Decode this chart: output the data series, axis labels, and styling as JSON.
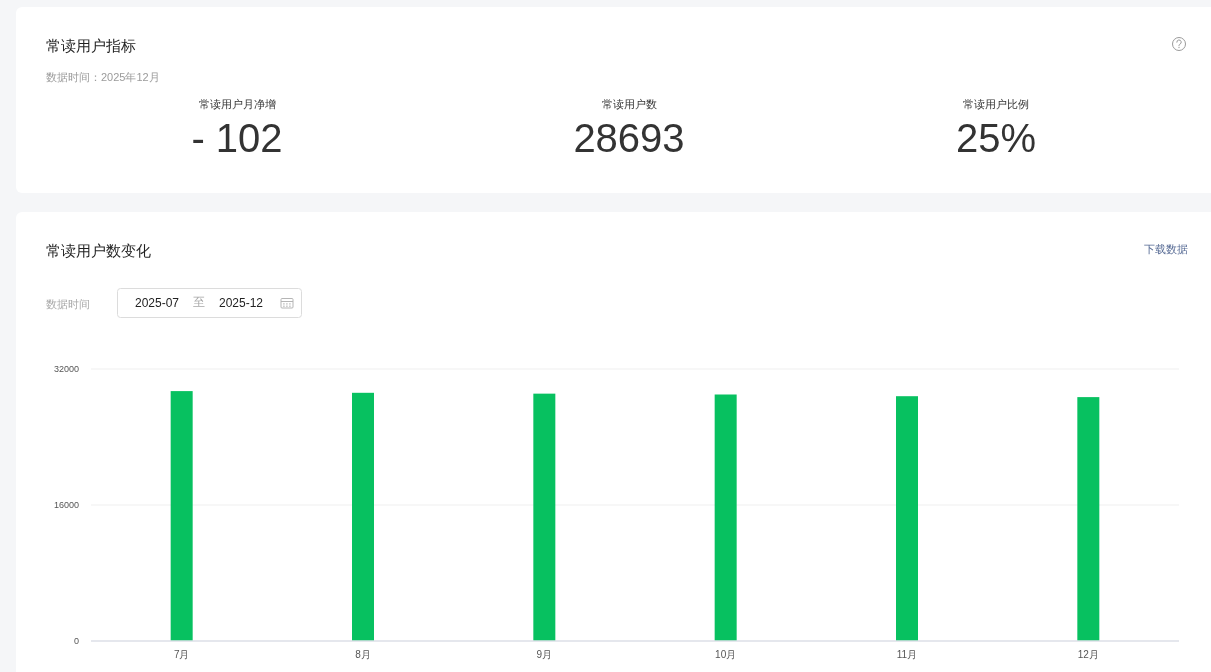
{
  "chart_data": [
    {
      "type": "other",
      "title": "常读用户指标",
      "subtitle": "数据时间：2025年12月",
      "annotations": [
        "常读用户月净增",
        "- 102",
        "常读用户数",
        "28693",
        "常读用户比例",
        "25%"
      ]
    },
    {
      "type": "bar",
      "title": "常读用户数变化",
      "annotations": [
        "下载数据",
        "数据时间",
        "2025-07",
        "至",
        "2025-12"
      ],
      "categories": [
        "7月",
        "8月",
        "9月",
        "10月",
        "11月",
        "12月"
      ],
      "values": [
        29400,
        29200,
        29100,
        29000,
        28800,
        28693
      ],
      "color": "#07c160",
      "ylim": [
        0,
        32000
      ],
      "yticks": [
        0,
        16000,
        32000
      ],
      "grid": "y"
    }
  ]
}
